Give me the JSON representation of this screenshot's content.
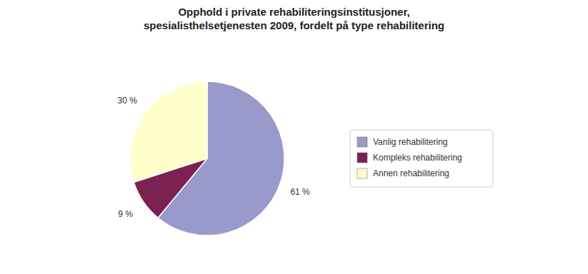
{
  "chart_data": {
    "type": "pie",
    "title": "Opphold i private rehabiliteringsinstitusjoner,\nspesialisthelsetjenesten 2009, fordelt på type rehabilitering",
    "categories": [
      "Vanlig rehabilitering",
      "Kompleks rehabilitering",
      "Annen rehabilitering"
    ],
    "values": [
      61,
      9,
      30
    ],
    "value_labels": [
      "61 %",
      "9 %",
      "30 %"
    ],
    "colors": [
      "#9999cc",
      "#7b2252",
      "#ffffcc"
    ],
    "data_labels": true,
    "legend": "right"
  }
}
